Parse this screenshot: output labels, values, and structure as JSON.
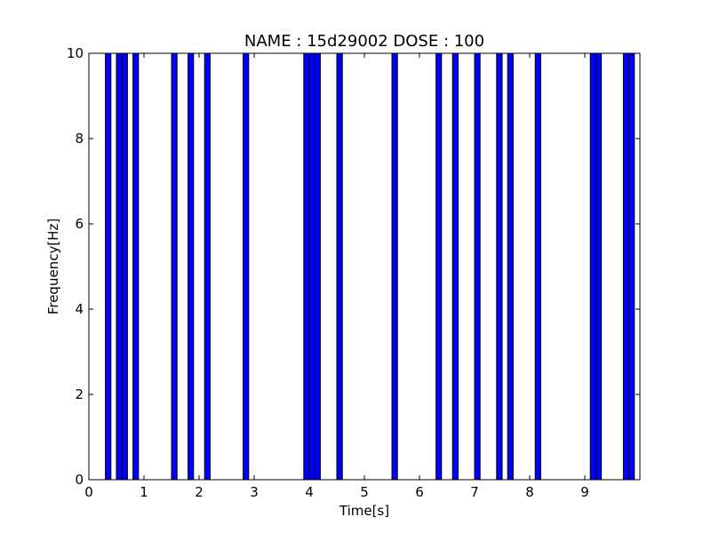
{
  "chart_data": {
    "type": "bar",
    "title": "NAME : 15d29002 DOSE : 100",
    "xlabel": "Time[s]",
    "ylabel": "Frequency[Hz]",
    "xlim": [
      0,
      10
    ],
    "ylim": [
      0,
      10
    ],
    "xticks": [
      "0",
      "1",
      "2",
      "3",
      "4",
      "5",
      "6",
      "7",
      "8",
      "9"
    ],
    "yticks": [
      "0",
      "2",
      "4",
      "6",
      "8",
      "10"
    ],
    "bar_width": 0.1,
    "bar_color": "#0000ff",
    "bar_edge_color": "#000000",
    "grid": false,
    "series": [
      {
        "x": [
          0.3,
          0.5,
          0.6,
          0.8,
          1.5,
          1.8,
          2.1,
          2.8,
          3.9,
          4.0,
          4.1,
          4.5,
          5.5,
          6.3,
          6.6,
          7.0,
          7.4,
          7.6,
          8.1,
          9.1,
          9.2,
          9.7,
          9.8
        ],
        "values": [
          10,
          10,
          10,
          10,
          10,
          10,
          10,
          10,
          10,
          10,
          10,
          10,
          10,
          10,
          10,
          10,
          10,
          10,
          10,
          10,
          10,
          10,
          10
        ]
      }
    ]
  }
}
